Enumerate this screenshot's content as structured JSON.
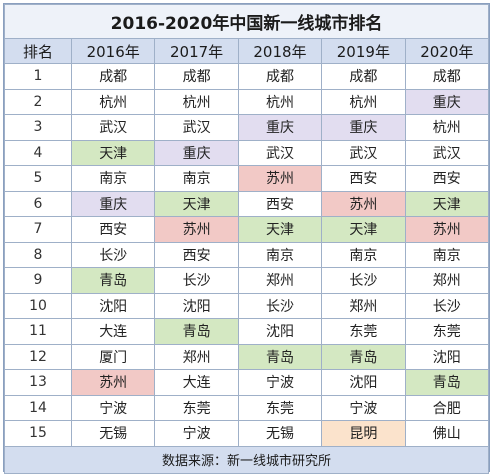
{
  "title": "2016-2020年中国新一线城市排名",
  "headers": [
    "排名",
    "2016年",
    "2017年",
    "2018年",
    "2019年",
    "2020年"
  ],
  "rows": [
    {
      "rank": "1",
      "cells": [
        [
          "成都",
          "none"
        ],
        [
          "成都",
          "none"
        ],
        [
          "成都",
          "none"
        ],
        [
          "成都",
          "none"
        ],
        [
          "成都",
          "none"
        ]
      ]
    },
    {
      "rank": "2",
      "cells": [
        [
          "杭州",
          "none"
        ],
        [
          "杭州",
          "none"
        ],
        [
          "杭州",
          "none"
        ],
        [
          "杭州",
          "none"
        ],
        [
          "重庆",
          "purple"
        ]
      ]
    },
    {
      "rank": "3",
      "cells": [
        [
          "武汉",
          "none"
        ],
        [
          "武汉",
          "none"
        ],
        [
          "重庆",
          "purple"
        ],
        [
          "重庆",
          "purple"
        ],
        [
          "杭州",
          "none"
        ]
      ]
    },
    {
      "rank": "4",
      "cells": [
        [
          "天津",
          "green"
        ],
        [
          "重庆",
          "purple"
        ],
        [
          "武汉",
          "none"
        ],
        [
          "武汉",
          "none"
        ],
        [
          "武汉",
          "none"
        ]
      ]
    },
    {
      "rank": "5",
      "cells": [
        [
          "南京",
          "none"
        ],
        [
          "南京",
          "none"
        ],
        [
          "苏州",
          "red"
        ],
        [
          "西安",
          "none"
        ],
        [
          "西安",
          "none"
        ]
      ]
    },
    {
      "rank": "6",
      "cells": [
        [
          "重庆",
          "purple"
        ],
        [
          "天津",
          "green"
        ],
        [
          "西安",
          "none"
        ],
        [
          "苏州",
          "red"
        ],
        [
          "天津",
          "green"
        ]
      ]
    },
    {
      "rank": "7",
      "cells": [
        [
          "西安",
          "none"
        ],
        [
          "苏州",
          "red"
        ],
        [
          "天津",
          "green"
        ],
        [
          "天津",
          "green"
        ],
        [
          "苏州",
          "red"
        ]
      ]
    },
    {
      "rank": "8",
      "cells": [
        [
          "长沙",
          "none"
        ],
        [
          "西安",
          "none"
        ],
        [
          "南京",
          "none"
        ],
        [
          "南京",
          "none"
        ],
        [
          "南京",
          "none"
        ]
      ]
    },
    {
      "rank": "9",
      "cells": [
        [
          "青岛",
          "green"
        ],
        [
          "长沙",
          "none"
        ],
        [
          "郑州",
          "none"
        ],
        [
          "长沙",
          "none"
        ],
        [
          "郑州",
          "none"
        ]
      ]
    },
    {
      "rank": "10",
      "cells": [
        [
          "沈阳",
          "none"
        ],
        [
          "沈阳",
          "none"
        ],
        [
          "长沙",
          "none"
        ],
        [
          "郑州",
          "none"
        ],
        [
          "长沙",
          "none"
        ]
      ]
    },
    {
      "rank": "11",
      "cells": [
        [
          "大连",
          "none"
        ],
        [
          "青岛",
          "green"
        ],
        [
          "沈阳",
          "none"
        ],
        [
          "东莞",
          "none"
        ],
        [
          "东莞",
          "none"
        ]
      ]
    },
    {
      "rank": "12",
      "cells": [
        [
          "厦门",
          "none"
        ],
        [
          "郑州",
          "none"
        ],
        [
          "青岛",
          "green"
        ],
        [
          "青岛",
          "green"
        ],
        [
          "沈阳",
          "none"
        ]
      ]
    },
    {
      "rank": "13",
      "cells": [
        [
          "苏州",
          "red"
        ],
        [
          "大连",
          "none"
        ],
        [
          "宁波",
          "none"
        ],
        [
          "沈阳",
          "none"
        ],
        [
          "青岛",
          "green"
        ]
      ]
    },
    {
      "rank": "14",
      "cells": [
        [
          "宁波",
          "none"
        ],
        [
          "东莞",
          "none"
        ],
        [
          "东莞",
          "none"
        ],
        [
          "宁波",
          "none"
        ],
        [
          "合肥",
          "none"
        ]
      ]
    },
    {
      "rank": "15",
      "cells": [
        [
          "无锡",
          "none"
        ],
        [
          "宁波",
          "none"
        ],
        [
          "无锡",
          "none"
        ],
        [
          "昆明",
          "orange"
        ],
        [
          "佛山",
          "none"
        ]
      ]
    }
  ],
  "source_note": "数据来源：新一线城市研究所",
  "colors": {
    "header_bg": "#d3ddef",
    "border": "#9fb0c8",
    "green": "#d4e8c2",
    "purple": "#e2ddf0",
    "red": "#f2c9c6",
    "orange": "#fbe3cc"
  }
}
